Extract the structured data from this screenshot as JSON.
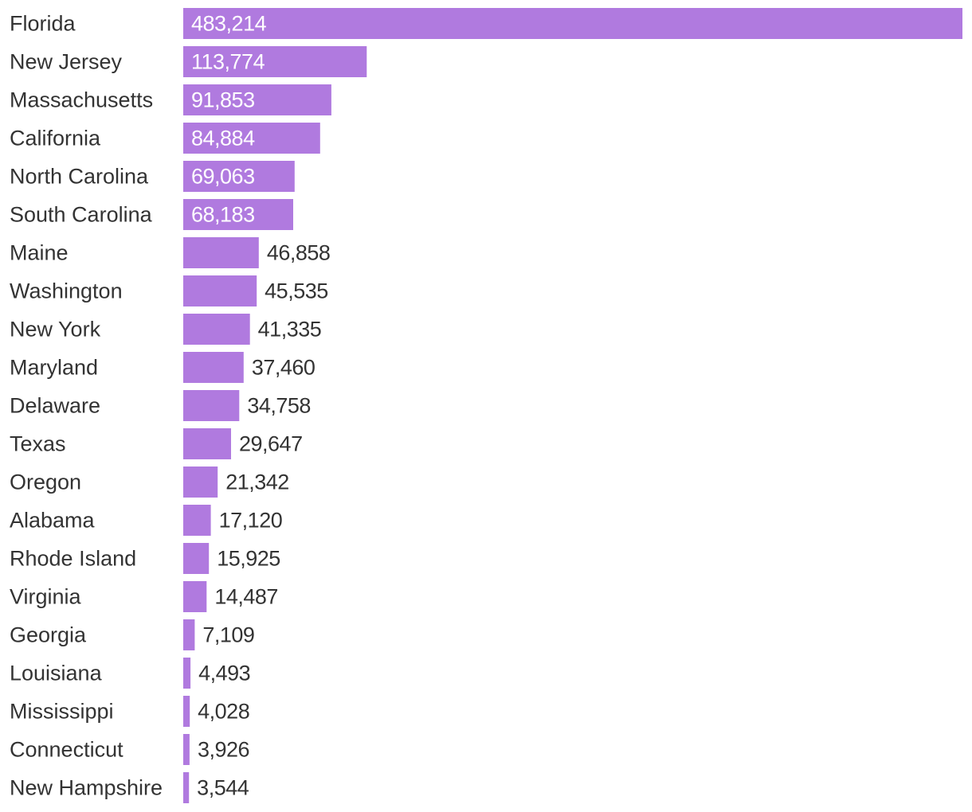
{
  "chart_data": {
    "type": "bar",
    "orientation": "horizontal",
    "title": "",
    "xlabel": "",
    "ylabel": "",
    "categories": [
      "Florida",
      "New Jersey",
      "Massachusetts",
      "California",
      "North Carolina",
      "South Carolina",
      "Maine",
      "Washington",
      "New York",
      "Maryland",
      "Delaware",
      "Texas",
      "Oregon",
      "Alabama",
      "Rhode Island",
      "Virginia",
      "Georgia",
      "Louisiana",
      "Mississippi",
      "Connecticut",
      "New Hampshire"
    ],
    "values": [
      483214,
      113774,
      91853,
      84884,
      69063,
      68183,
      46858,
      45535,
      41335,
      37460,
      34758,
      29647,
      21342,
      17120,
      15925,
      14487,
      7109,
      4493,
      4028,
      3926,
      3544
    ],
    "value_labels": [
      "483,214",
      "113,774",
      "91,853",
      "84,884",
      "69,063",
      "68,183",
      "46,858",
      "45,535",
      "41,335",
      "37,460",
      "34,758",
      "29,647",
      "21,342",
      "17,120",
      "15,925",
      "14,487",
      "7,109",
      "4,493",
      "4,028",
      "3,926",
      "3,544"
    ],
    "xlim": [
      0,
      483214
    ],
    "grid": false,
    "legend": "none",
    "colors": {
      "bar": "#b07adf",
      "label_inside": "#ffffff",
      "label_outside": "#333333",
      "category_text": "#333333"
    }
  }
}
